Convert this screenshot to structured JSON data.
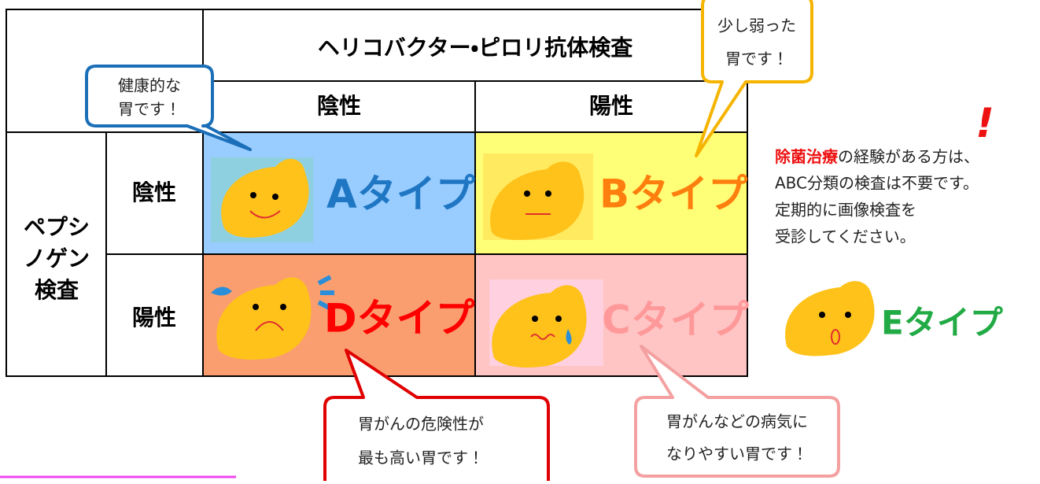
{
  "table": {
    "title": "ヘリコバクター・ピロリ抗体検査",
    "columns": [
      "陰性",
      "陽性"
    ],
    "row_group": [
      "ペプシ",
      "ノゲン",
      "検査"
    ],
    "rows": [
      "陰性",
      "陽性"
    ],
    "cells": [
      [
        "Aタイプ",
        "Bタイプ"
      ],
      [
        "Dタイプ",
        "Cタイプ"
      ]
    ]
  },
  "bubbles": [
    {
      "lines": [
        "健康的な",
        "胃です！"
      ]
    },
    {
      "lines": [
        "少し弱った",
        "胃です！"
      ]
    },
    {
      "lines": [
        "胃がんの危険性が",
        "最も高い胃です！"
      ]
    },
    {
      "lines": [
        "胃がんなどの病気に",
        "なりやすい胃です！"
      ]
    }
  ],
  "note": {
    "highlight": "除菌治療",
    "lines": [
      "の経験がある方は、",
      "ABC分類の検査は不要です。",
      "定期的に画像検査を",
      "受診してください。"
    ],
    "mark": "!"
  },
  "extra_type": "Eタイプ"
}
